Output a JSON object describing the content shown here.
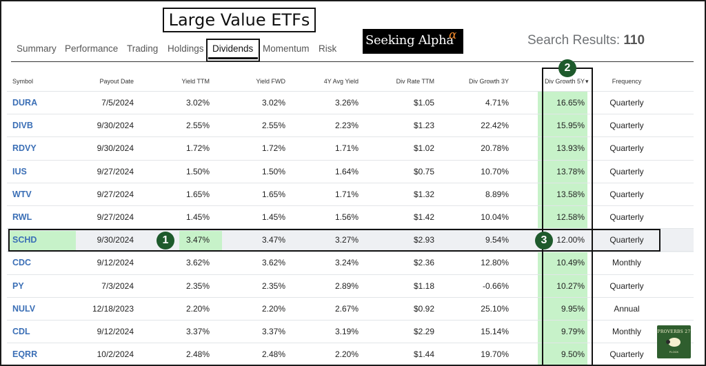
{
  "title": "Large Value ETFs",
  "logo": {
    "word": "Seeking Alpha",
    "alpha": "α"
  },
  "search": {
    "label": "Search Results:",
    "count": "110"
  },
  "tabs": [
    "Summary",
    "Performance",
    "Trading",
    "Holdings",
    "Dividends",
    "Momentum",
    "Risk"
  ],
  "active_tab": "Dividends",
  "columns": {
    "symbol": "Symbol",
    "payout": "Payout Date",
    "yttm": "Yield TTM",
    "yfwd": "Yield FWD",
    "avg4y": "4Y Avg Yield",
    "rate": "Div Rate TTM",
    "g3": "Div Growth 3Y",
    "g5": "Div Growth 5Y",
    "g5_sort": "▾",
    "freq": "Frequency"
  },
  "rows": [
    [
      "DURA",
      "7/5/2024",
      "3.02%",
      "3.02%",
      "3.26%",
      "$1.05",
      "4.71%",
      "16.65%",
      "Quarterly"
    ],
    [
      "DIVB",
      "9/30/2024",
      "2.55%",
      "2.55%",
      "2.23%",
      "$1.23",
      "22.42%",
      "15.95%",
      "Quarterly"
    ],
    [
      "RDVY",
      "9/30/2024",
      "1.72%",
      "1.72%",
      "1.71%",
      "$1.02",
      "20.78%",
      "13.93%",
      "Quarterly"
    ],
    [
      "IUS",
      "9/27/2024",
      "1.50%",
      "1.50%",
      "1.64%",
      "$0.75",
      "10.70%",
      "13.78%",
      "Quarterly"
    ],
    [
      "WTV",
      "9/27/2024",
      "1.65%",
      "1.65%",
      "1.71%",
      "$1.32",
      "8.89%",
      "13.58%",
      "Quarterly"
    ],
    [
      "RWL",
      "9/27/2024",
      "1.45%",
      "1.45%",
      "1.56%",
      "$1.42",
      "10.04%",
      "12.58%",
      "Quarterly"
    ],
    [
      "SCHD",
      "9/30/2024",
      "3.47%",
      "3.47%",
      "3.27%",
      "$2.93",
      "9.54%",
      "12.00%",
      "Quarterly"
    ],
    [
      "CDC",
      "9/12/2024",
      "3.62%",
      "3.62%",
      "3.24%",
      "$2.36",
      "12.80%",
      "10.49%",
      "Monthly"
    ],
    [
      "PY",
      "7/3/2024",
      "2.35%",
      "2.35%",
      "2.89%",
      "$1.18",
      "-0.66%",
      "10.27%",
      "Quarterly"
    ],
    [
      "NULV",
      "12/18/2023",
      "2.20%",
      "2.20%",
      "2.67%",
      "$0.92",
      "25.10%",
      "9.95%",
      "Annual"
    ],
    [
      "CDL",
      "9/12/2024",
      "3.37%",
      "3.37%",
      "3.19%",
      "$2.29",
      "15.14%",
      "9.79%",
      "Monthly"
    ],
    [
      "EQRR",
      "10/2/2024",
      "2.48%",
      "2.48%",
      "2.20%",
      "$1.44",
      "19.70%",
      "9.50%",
      "Quarterly"
    ]
  ],
  "markers": {
    "m1": "1",
    "m2": "2",
    "m3": "3"
  },
  "badge": {
    "line1": "PROVERBS 27",
    "line2": "FLOCK"
  },
  "colors": {
    "highlight": "#c7f2c9",
    "symbol": "#3b6fb6",
    "marker": "#1e5a2c"
  }
}
